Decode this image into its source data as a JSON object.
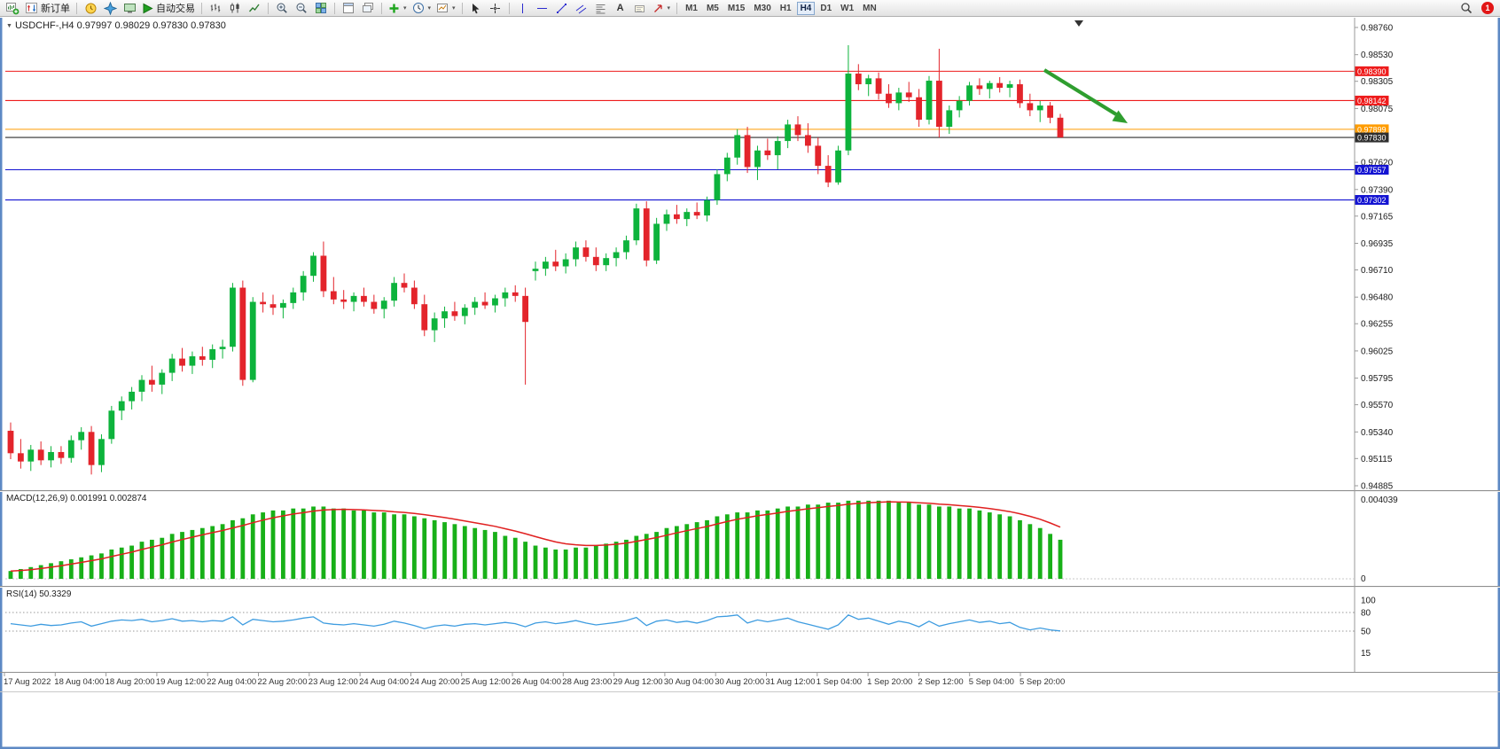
{
  "toolbar": {
    "new_order": "新订单",
    "auto_trading": "自动交易",
    "timeframes": [
      "M1",
      "M5",
      "M15",
      "M30",
      "H1",
      "H4",
      "D1",
      "W1",
      "MN"
    ],
    "active_timeframe": "H4",
    "badge": "1"
  },
  "icons": {
    "collapse": "▼",
    "dropdown": "▾",
    "text_tool": "A"
  },
  "chart_data": [
    {
      "type": "candlestick",
      "title": "USDCHF-,H4",
      "ohlc_text": "0.97997 0.98029 0.97830 0.97830",
      "axis_range": {
        "top": 0.9876,
        "bottom": 0.94885
      },
      "colors": {
        "up": "#0db33c",
        "down": "#e3242b"
      },
      "price_axis_labels": [
        "0.98760",
        "0.98530",
        "0.98305",
        "0.98075",
        "0.97620",
        "0.97390",
        "0.97165",
        "0.96935",
        "0.96710",
        "0.96480",
        "0.96255",
        "0.96025",
        "0.95795",
        "0.95570",
        "0.95340",
        "0.95115",
        "0.94885"
      ],
      "hlines": [
        {
          "price": "0.98390",
          "color": "#ee1c1c",
          "role": "resistance"
        },
        {
          "price": "0.98142",
          "color": "#ee1c1c",
          "role": "resistance"
        },
        {
          "price": "0.97899",
          "color": "#ff9c00",
          "role": "level"
        },
        {
          "price": "0.97830",
          "color": "#2e2e2e",
          "role": "bid"
        },
        {
          "price": "0.97557",
          "color": "#1313d2",
          "role": "support"
        },
        {
          "price": "0.97302",
          "color": "#1313d2",
          "role": "support"
        }
      ],
      "annotation_arrow": {
        "color": "#2f9e2f",
        "direction": "down-right"
      },
      "time_labels": [
        "17 Aug 2022",
        "18 Aug 04:00",
        "18 Aug 20:00",
        "19 Aug 12:00",
        "22 Aug 04:00",
        "22 Aug 20:00",
        "23 Aug 12:00",
        "24 Aug 04:00",
        "24 Aug 20:00",
        "25 Aug 12:00",
        "26 Aug 04:00",
        "28 Aug 23:00",
        "29 Aug 12:00",
        "30 Aug 04:00",
        "30 Aug 20:00",
        "31 Aug 12:00",
        "1 Sep 04:00",
        "1 Sep 20:00",
        "2 Sep 12:00",
        "5 Sep 04:00",
        "5 Sep 20:00"
      ],
      "candles": [
        [
          0.9535,
          0.9542,
          0.9511,
          0.9516
        ],
        [
          0.9516,
          0.9528,
          0.9503,
          0.9509
        ],
        [
          0.9509,
          0.9523,
          0.9501,
          0.9519
        ],
        [
          0.9519,
          0.9526,
          0.9506,
          0.951
        ],
        [
          0.951,
          0.9522,
          0.9504,
          0.9517
        ],
        [
          0.9517,
          0.9522,
          0.9507,
          0.9512
        ],
        [
          0.9512,
          0.9531,
          0.9508,
          0.9527
        ],
        [
          0.9527,
          0.9538,
          0.9519,
          0.9534
        ],
        [
          0.9534,
          0.9539,
          0.9498,
          0.9506
        ],
        [
          0.9506,
          0.9532,
          0.95,
          0.9528
        ],
        [
          0.9528,
          0.9556,
          0.9524,
          0.9552
        ],
        [
          0.9552,
          0.9564,
          0.9544,
          0.956
        ],
        [
          0.956,
          0.9572,
          0.9553,
          0.9568
        ],
        [
          0.9568,
          0.9582,
          0.956,
          0.9578
        ],
        [
          0.9578,
          0.959,
          0.9568,
          0.9574
        ],
        [
          0.9574,
          0.9587,
          0.9566,
          0.9584
        ],
        [
          0.9584,
          0.96,
          0.9577,
          0.9596
        ],
        [
          0.9596,
          0.9605,
          0.9585,
          0.959
        ],
        [
          0.959,
          0.9602,
          0.9583,
          0.9598
        ],
        [
          0.9598,
          0.9606,
          0.959,
          0.9595
        ],
        [
          0.9595,
          0.9608,
          0.9588,
          0.9604
        ],
        [
          0.9604,
          0.9612,
          0.9596,
          0.9606
        ],
        [
          0.9606,
          0.966,
          0.9602,
          0.9656
        ],
        [
          0.9656,
          0.9662,
          0.9573,
          0.9578
        ],
        [
          0.9578,
          0.9648,
          0.9576,
          0.9644
        ],
        [
          0.9644,
          0.9652,
          0.9635,
          0.9642
        ],
        [
          0.9642,
          0.965,
          0.9633,
          0.9639
        ],
        [
          0.9639,
          0.9646,
          0.963,
          0.9643
        ],
        [
          0.9643,
          0.9656,
          0.9638,
          0.9652
        ],
        [
          0.9652,
          0.967,
          0.9645,
          0.9666
        ],
        [
          0.9666,
          0.9686,
          0.9661,
          0.9683
        ],
        [
          0.9683,
          0.9695,
          0.9648,
          0.9653
        ],
        [
          0.9653,
          0.9665,
          0.9642,
          0.9646
        ],
        [
          0.9646,
          0.9654,
          0.9638,
          0.9644
        ],
        [
          0.9644,
          0.9652,
          0.9636,
          0.9649
        ],
        [
          0.9649,
          0.9656,
          0.964,
          0.9644
        ],
        [
          0.9644,
          0.965,
          0.9634,
          0.9638
        ],
        [
          0.9638,
          0.9648,
          0.963,
          0.9645
        ],
        [
          0.9645,
          0.9665,
          0.964,
          0.966
        ],
        [
          0.966,
          0.9668,
          0.9652,
          0.9656
        ],
        [
          0.9656,
          0.9662,
          0.9638,
          0.9642
        ],
        [
          0.9642,
          0.965,
          0.9615,
          0.962
        ],
        [
          0.962,
          0.9635,
          0.961,
          0.963
        ],
        [
          0.963,
          0.964,
          0.9622,
          0.9636
        ],
        [
          0.9636,
          0.9644,
          0.9628,
          0.9632
        ],
        [
          0.9632,
          0.9642,
          0.9625,
          0.9639
        ],
        [
          0.9639,
          0.9648,
          0.9633,
          0.9644
        ],
        [
          0.9644,
          0.9652,
          0.9638,
          0.9641
        ],
        [
          0.9641,
          0.965,
          0.9635,
          0.9647
        ],
        [
          0.9647,
          0.9656,
          0.964,
          0.9652
        ],
        [
          0.9652,
          0.9658,
          0.9644,
          0.9649
        ],
        [
          0.9649,
          0.9656,
          0.9574,
          0.9627
        ],
        [
          0.967,
          0.9678,
          0.9662,
          0.9672
        ],
        [
          0.9672,
          0.9682,
          0.9666,
          0.9678
        ],
        [
          0.9678,
          0.9688,
          0.967,
          0.9674
        ],
        [
          0.9674,
          0.9685,
          0.9668,
          0.968
        ],
        [
          0.968,
          0.9695,
          0.9674,
          0.969
        ],
        [
          0.969,
          0.9696,
          0.9678,
          0.9682
        ],
        [
          0.9682,
          0.969,
          0.967,
          0.9675
        ],
        [
          0.9675,
          0.9685,
          0.967,
          0.9681
        ],
        [
          0.9681,
          0.969,
          0.9674,
          0.9686
        ],
        [
          0.9686,
          0.97,
          0.968,
          0.9696
        ],
        [
          0.9696,
          0.9727,
          0.9692,
          0.9723
        ],
        [
          0.9723,
          0.9729,
          0.9674,
          0.9679
        ],
        [
          0.9679,
          0.9715,
          0.9676,
          0.971
        ],
        [
          0.971,
          0.9722,
          0.9704,
          0.9718
        ],
        [
          0.9718,
          0.9726,
          0.971,
          0.9714
        ],
        [
          0.9714,
          0.9723,
          0.9708,
          0.972
        ],
        [
          0.972,
          0.9728,
          0.9714,
          0.9717
        ],
        [
          0.9717,
          0.9733,
          0.9712,
          0.973
        ],
        [
          0.973,
          0.9756,
          0.9726,
          0.9752
        ],
        [
          0.9752,
          0.977,
          0.9746,
          0.9766
        ],
        [
          0.9766,
          0.979,
          0.976,
          0.9785
        ],
        [
          0.9785,
          0.9792,
          0.9753,
          0.9758
        ],
        [
          0.9758,
          0.9776,
          0.9747,
          0.9772
        ],
        [
          0.9772,
          0.9782,
          0.9764,
          0.9768
        ],
        [
          0.9768,
          0.9784,
          0.9756,
          0.978
        ],
        [
          0.978,
          0.9798,
          0.9774,
          0.9794
        ],
        [
          0.9794,
          0.9801,
          0.978,
          0.9785
        ],
        [
          0.9785,
          0.9795,
          0.977,
          0.9776
        ],
        [
          0.9776,
          0.9783,
          0.9752,
          0.9759
        ],
        [
          0.9759,
          0.9768,
          0.9741,
          0.9745
        ],
        [
          0.9745,
          0.9776,
          0.9743,
          0.9772
        ],
        [
          0.9772,
          0.9861,
          0.9768,
          0.9837
        ],
        [
          0.9837,
          0.9845,
          0.9823,
          0.9828
        ],
        [
          0.9828,
          0.9836,
          0.9818,
          0.9833
        ],
        [
          0.9833,
          0.9838,
          0.9815,
          0.982
        ],
        [
          0.982,
          0.9828,
          0.9808,
          0.9812
        ],
        [
          0.9812,
          0.9825,
          0.9806,
          0.9821
        ],
        [
          0.9821,
          0.983,
          0.9813,
          0.9817
        ],
        [
          0.9817,
          0.9824,
          0.9792,
          0.9798
        ],
        [
          0.9798,
          0.9835,
          0.9794,
          0.9831
        ],
        [
          0.9831,
          0.9858,
          0.9783,
          0.9792
        ],
        [
          0.9792,
          0.981,
          0.9786,
          0.9806
        ],
        [
          0.9806,
          0.9818,
          0.98,
          0.9814
        ],
        [
          0.9814,
          0.983,
          0.981,
          0.9827
        ],
        [
          0.9827,
          0.9833,
          0.9819,
          0.9824
        ],
        [
          0.9824,
          0.9831,
          0.9816,
          0.9829
        ],
        [
          0.9829,
          0.9834,
          0.9821,
          0.9825
        ],
        [
          0.9825,
          0.9831,
          0.9817,
          0.9828
        ],
        [
          0.9828,
          0.9832,
          0.9808,
          0.9812
        ],
        [
          0.9812,
          0.982,
          0.9801,
          0.9806
        ],
        [
          0.9806,
          0.9814,
          0.9796,
          0.981
        ],
        [
          0.981,
          0.9813,
          0.9795,
          0.97997
        ],
        [
          0.97997,
          0.98029,
          0.9783,
          0.9783
        ]
      ]
    },
    {
      "type": "bar",
      "name": "MACD(12,26,9)",
      "main_value": "0.001991",
      "signal_value": "0.002874",
      "axis_labels": [
        "0.004039",
        "0"
      ],
      "bar_color": "#18b018",
      "signal_color": "#e02020",
      "values": [
        0.0004,
        0.0005,
        0.0006,
        0.0007,
        0.0008,
        0.0009,
        0.001,
        0.0011,
        0.0012,
        0.0013,
        0.0015,
        0.0016,
        0.0017,
        0.0019,
        0.002,
        0.0021,
        0.0023,
        0.0024,
        0.0025,
        0.0026,
        0.0027,
        0.0028,
        0.003,
        0.0031,
        0.0033,
        0.0034,
        0.0035,
        0.0035,
        0.0036,
        0.0036,
        0.0037,
        0.0037,
        0.0036,
        0.0036,
        0.0035,
        0.0035,
        0.0034,
        0.0034,
        0.0033,
        0.0033,
        0.0032,
        0.0031,
        0.003,
        0.0029,
        0.0028,
        0.0027,
        0.0026,
        0.0025,
        0.0024,
        0.0022,
        0.0021,
        0.0019,
        0.0017,
        0.0016,
        0.0015,
        0.0015,
        0.0016,
        0.0016,
        0.0017,
        0.0018,
        0.0019,
        0.002,
        0.0022,
        0.0023,
        0.0024,
        0.0026,
        0.0027,
        0.0028,
        0.0029,
        0.003,
        0.0032,
        0.0033,
        0.0034,
        0.0034,
        0.0035,
        0.0035,
        0.0036,
        0.0037,
        0.0037,
        0.0038,
        0.0038,
        0.0039,
        0.0039,
        0.004,
        0.004,
        0.004,
        0.004,
        0.004,
        0.0039,
        0.0039,
        0.0038,
        0.0038,
        0.0037,
        0.0037,
        0.0036,
        0.0036,
        0.0035,
        0.0034,
        0.0033,
        0.0032,
        0.003,
        0.0028,
        0.0026,
        0.0023,
        0.002
      ]
    },
    {
      "type": "line",
      "name": "RSI(14)",
      "value": "50.3329",
      "axis_labels": [
        "100",
        "80",
        "50",
        "15"
      ],
      "levels": [
        80,
        50
      ],
      "line_color": "#3e9ce0",
      "values": [
        62,
        60,
        58,
        61,
        59,
        60,
        63,
        65,
        58,
        62,
        66,
        68,
        67,
        69,
        65,
        67,
        70,
        66,
        67,
        65,
        67,
        66,
        73,
        60,
        69,
        67,
        65,
        66,
        68,
        71,
        73,
        63,
        61,
        60,
        62,
        60,
        58,
        61,
        66,
        63,
        59,
        54,
        58,
        60,
        58,
        61,
        62,
        60,
        62,
        64,
        62,
        57,
        63,
        65,
        62,
        64,
        67,
        63,
        60,
        62,
        64,
        67,
        72,
        59,
        66,
        68,
        64,
        66,
        63,
        67,
        73,
        74,
        76,
        63,
        68,
        65,
        68,
        71,
        65,
        61,
        57,
        53,
        60,
        76,
        69,
        71,
        66,
        61,
        66,
        63,
        57,
        66,
        58,
        62,
        65,
        68,
        64,
        66,
        62,
        64,
        56,
        52,
        55,
        52,
        50.33
      ]
    }
  ]
}
